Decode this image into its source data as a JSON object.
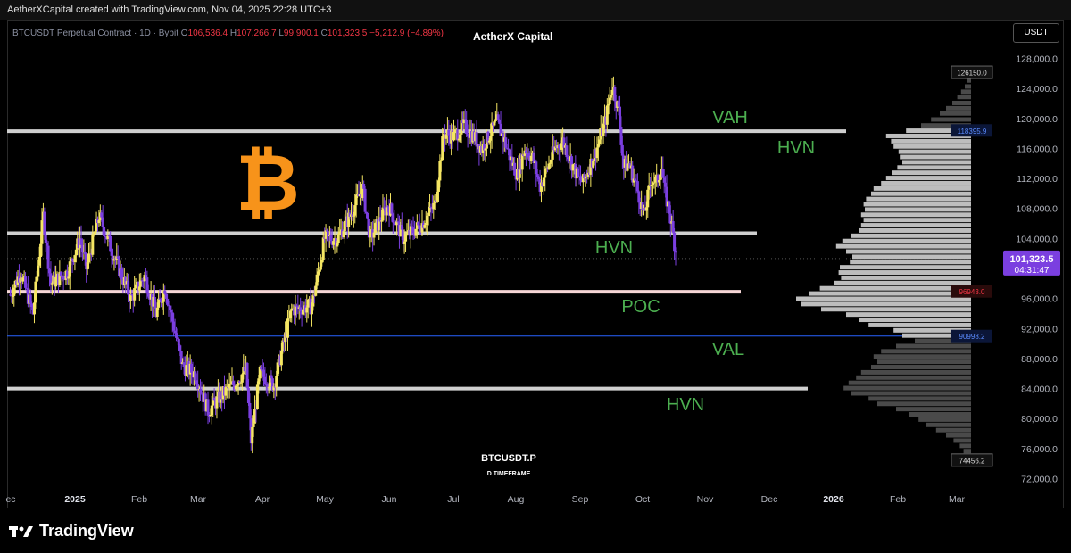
{
  "header": {
    "caption": "AetherXCapital created with TradingView.com, Nov 04, 2025 22:28 UTC+3"
  },
  "legend": {
    "symbol": "BTCUSDT Perpetual Contract · 1D · Bybit",
    "o_label": "O",
    "o_val": "106,536.4",
    "h_label": "H",
    "h_val": "107,266.7",
    "l_label": "L",
    "l_val": "99,900.1",
    "c_label": "C",
    "c_val": "101,323.5",
    "change": "−5,212.9 (−4.89%)"
  },
  "watermark": "AetherX Capital",
  "currency_button": "USDT",
  "center_title": "BTCUSDT.P",
  "center_sub": "D TIMEFRAME",
  "footer_logo": "TradingView",
  "colors": {
    "up": "#f5e663",
    "down": "#7b3fe0",
    "level_green": "#4caf50",
    "bitcoin": "#f7931a"
  },
  "icons": [
    "bitcoin-icon",
    "tradingview-logo-icon"
  ],
  "chart_data": {
    "type": "candlestick",
    "symbol": "BTCUSDT.P",
    "timeframe": "1D",
    "ylim": [
      72000,
      128000
    ],
    "yticks": [
      "128,000.0",
      "124,000.0",
      "120,000.0",
      "116,000.0",
      "112,000.0",
      "108,000.0",
      "104,000.0",
      "100,000.0",
      "96,000.0",
      "92,000.0",
      "88,000.0",
      "84,000.0",
      "80,000.0",
      "76,000.0",
      "72,000.0"
    ],
    "xticks": [
      "ec",
      "2025",
      "Feb",
      "Mar",
      "Apr",
      "May",
      "Jun",
      "Jul",
      "Aug",
      "Sep",
      "Oct",
      "Nov",
      "Dec",
      "2026",
      "Feb",
      "Mar"
    ],
    "last_price": "101,323.5",
    "countdown": "04:31:47",
    "price_markers": [
      {
        "label": "126150.0",
        "value": 126150
      },
      {
        "label": "118395.9",
        "value": 118395.9
      },
      {
        "label": "96943.0",
        "value": 96943
      },
      {
        "label": "90998.2",
        "value": 90998.2
      },
      {
        "label": "74456.2",
        "value": 74456.2
      }
    ],
    "levels": [
      {
        "name": "VAH",
        "value": 118300
      },
      {
        "name": "HVN",
        "value": 104700
      },
      {
        "name": "POC",
        "value": 96900
      },
      {
        "name": "VAL",
        "value": 91000
      },
      {
        "name": "HVN",
        "value": 84000
      }
    ],
    "annotations": [
      "VAH",
      "HVN",
      "HVN",
      "POC",
      "VAL",
      "HVN"
    ],
    "path": [
      [
        0,
        96500
      ],
      [
        8,
        99500
      ],
      [
        18,
        94000
      ],
      [
        26,
        107000
      ],
      [
        32,
        98000
      ],
      [
        45,
        99500
      ],
      [
        55,
        104000
      ],
      [
        60,
        100000
      ],
      [
        70,
        107000
      ],
      [
        80,
        102500
      ],
      [
        95,
        96000
      ],
      [
        106,
        99000
      ],
      [
        115,
        94000
      ],
      [
        122,
        97500
      ],
      [
        136,
        87000
      ],
      [
        146,
        86000
      ],
      [
        156,
        81000
      ],
      [
        166,
        83000
      ],
      [
        176,
        84500
      ],
      [
        186,
        86500
      ],
      [
        190,
        77000
      ],
      [
        197,
        86000
      ],
      [
        208,
        84500
      ],
      [
        222,
        94500
      ],
      [
        238,
        95000
      ],
      [
        248,
        104000
      ],
      [
        258,
        104000
      ],
      [
        268,
        107000
      ],
      [
        278,
        110700
      ],
      [
        284,
        104000
      ],
      [
        298,
        108500
      ],
      [
        310,
        104000
      ],
      [
        318,
        105000
      ],
      [
        325,
        106000
      ],
      [
        335,
        108500
      ],
      [
        342,
        118000
      ],
      [
        350,
        117600
      ],
      [
        358,
        119000
      ],
      [
        366,
        117500
      ],
      [
        372,
        116000
      ],
      [
        378,
        117800
      ],
      [
        384,
        119500
      ],
      [
        390,
        117000
      ],
      [
        396,
        114000
      ],
      [
        400,
        112500
      ],
      [
        406,
        116000
      ],
      [
        412,
        114800
      ],
      [
        418,
        111000
      ],
      [
        424,
        113500
      ],
      [
        430,
        116000
      ],
      [
        436,
        117000
      ],
      [
        442,
        114500
      ],
      [
        448,
        112000
      ],
      [
        452,
        111500
      ],
      [
        458,
        114000
      ],
      [
        464,
        116600
      ],
      [
        470,
        120000
      ],
      [
        475,
        124500
      ],
      [
        480,
        121000
      ],
      [
        484,
        113500
      ],
      [
        488,
        114000
      ],
      [
        494,
        111000
      ],
      [
        500,
        107000
      ],
      [
        506,
        112000
      ],
      [
        510,
        111500
      ],
      [
        514,
        113500
      ],
      [
        516,
        110500
      ],
      [
        520,
        107700
      ],
      [
        526,
        101323.5
      ]
    ],
    "volume_profile": [
      [
        125000,
        3
      ],
      [
        124200,
        5
      ],
      [
        123500,
        8
      ],
      [
        122800,
        11
      ],
      [
        122000,
        15
      ],
      [
        121300,
        20
      ],
      [
        120600,
        25
      ],
      [
        119800,
        32
      ],
      [
        119000,
        40
      ],
      [
        118300,
        52
      ],
      [
        117600,
        68
      ],
      [
        116900,
        64
      ],
      [
        116200,
        62
      ],
      [
        115500,
        58
      ],
      [
        114800,
        57
      ],
      [
        114100,
        55
      ],
      [
        113400,
        59
      ],
      [
        112700,
        63
      ],
      [
        112000,
        68
      ],
      [
        111300,
        72
      ],
      [
        110600,
        78
      ],
      [
        109900,
        80
      ],
      [
        109200,
        84
      ],
      [
        108500,
        86
      ],
      [
        107800,
        85
      ],
      [
        107100,
        88
      ],
      [
        106400,
        86
      ],
      [
        105700,
        88
      ],
      [
        105000,
        90
      ],
      [
        104300,
        96
      ],
      [
        103600,
        103
      ],
      [
        102900,
        108
      ],
      [
        102200,
        100
      ],
      [
        101500,
        95
      ],
      [
        100800,
        97
      ],
      [
        100100,
        105
      ],
      [
        99400,
        106
      ],
      [
        98700,
        104
      ],
      [
        98000,
        110
      ],
      [
        97300,
        121
      ],
      [
        96600,
        130
      ],
      [
        95900,
        140
      ],
      [
        95200,
        136
      ],
      [
        94500,
        120
      ],
      [
        93800,
        100
      ],
      [
        93100,
        90
      ],
      [
        92400,
        82
      ],
      [
        91700,
        62
      ],
      [
        91000,
        55
      ],
      [
        90300,
        45
      ],
      [
        89600,
        60
      ],
      [
        88900,
        72
      ],
      [
        88200,
        78
      ],
      [
        87500,
        75
      ],
      [
        86800,
        80
      ],
      [
        86100,
        88
      ],
      [
        85400,
        92
      ],
      [
        84700,
        98
      ],
      [
        84000,
        102
      ],
      [
        83300,
        96
      ],
      [
        82600,
        82
      ],
      [
        81900,
        75
      ],
      [
        81200,
        60
      ],
      [
        80500,
        50
      ],
      [
        79800,
        42
      ],
      [
        79100,
        36
      ],
      [
        78400,
        28
      ],
      [
        77700,
        20
      ],
      [
        77000,
        14
      ],
      [
        76300,
        9
      ],
      [
        75600,
        6
      ],
      [
        74900,
        4
      ]
    ]
  }
}
